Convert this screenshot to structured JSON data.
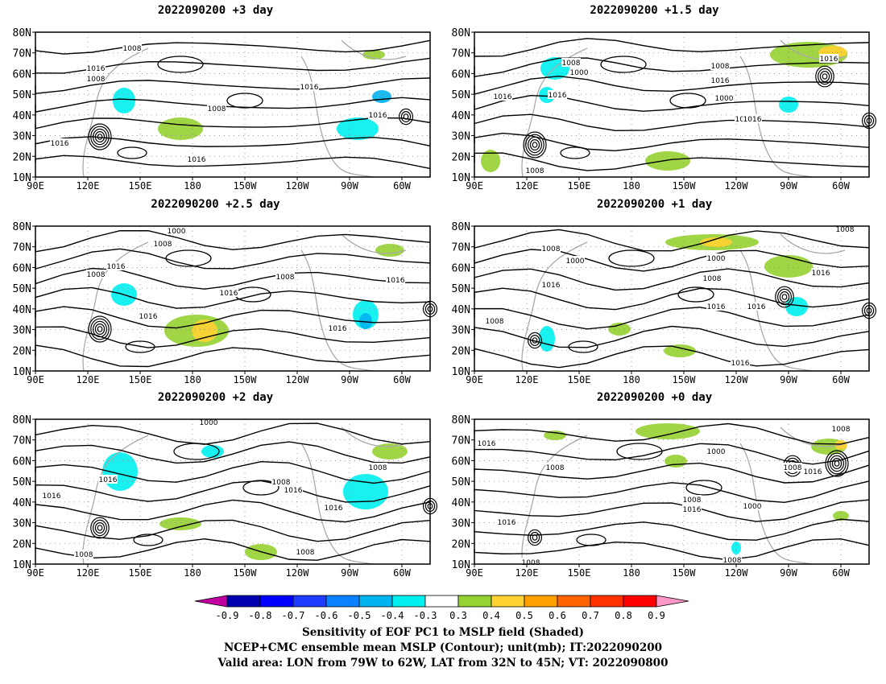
{
  "panels": [
    {
      "title": "2022090200 +3 day",
      "labels": [
        "1008",
        "1016",
        "1008",
        "1016",
        "1008",
        "1016",
        "1016",
        "1016"
      ]
    },
    {
      "title": "2022090200 +1.5 day",
      "labels": [
        "1008",
        "1000",
        "1016",
        "1016",
        "1008",
        "1016",
        "1000",
        "1008",
        "1016",
        "1008",
        "1016"
      ]
    },
    {
      "title": "2022090200 +2.5 day",
      "labels": [
        "1000",
        "1008",
        "1016",
        "1008",
        "1016",
        "1008",
        "1016",
        "1016",
        "1016"
      ]
    },
    {
      "title": "2022090200 +1 day",
      "labels": [
        "1008",
        "1000",
        "1016",
        "1000",
        "1008",
        "1016",
        "1016",
        "1008",
        "1016",
        "1008",
        "1016"
      ]
    },
    {
      "title": "2022090200 +2 day",
      "labels": [
        "1000",
        "1016",
        "1016",
        "1008",
        "1016",
        "1016",
        "1008",
        "1008",
        "1008"
      ]
    },
    {
      "title": "2022090200 +0 day",
      "labels": [
        "1016",
        "1008",
        "1016",
        "1008",
        "1008",
        "1000",
        "1016",
        "1000",
        "1008",
        "1016",
        "1008",
        "1008"
      ]
    }
  ],
  "axes": {
    "lat_ticks": [
      "80N",
      "70N",
      "60N",
      "50N",
      "40N",
      "30N",
      "20N",
      "10N"
    ],
    "lon_ticks": [
      "90E",
      "120E",
      "150E",
      "180",
      "150W",
      "120W",
      "90W",
      "60W"
    ]
  },
  "colorbar": {
    "ticks": [
      "-0.9",
      "-0.8",
      "-0.7",
      "-0.6",
      "-0.5",
      "-0.4",
      "-0.3",
      "0.3",
      "0.4",
      "0.5",
      "0.6",
      "0.7",
      "0.8",
      "0.9"
    ],
    "colors": [
      "#c000a0",
      "#0000b0",
      "#0000ff",
      "#1e3cff",
      "#0a82ff",
      "#00b4f0",
      "#00f0f0",
      "#ffffff",
      "#96d232",
      "#ffd232",
      "#ffa000",
      "#ff6400",
      "#ff3200",
      "#ff0000",
      "#ff96c8"
    ]
  },
  "footer": {
    "line1": "Sensitivity of EOF PC1 to MSLP field (Shaded)",
    "line2": "NCEP+CMC ensemble mean MSLP (Contour); unit(mb); IT:2022090200",
    "line3": "Valid area: LON from 79W to 62W, LAT from 32N to 45N; VT: 2022090800"
  }
}
